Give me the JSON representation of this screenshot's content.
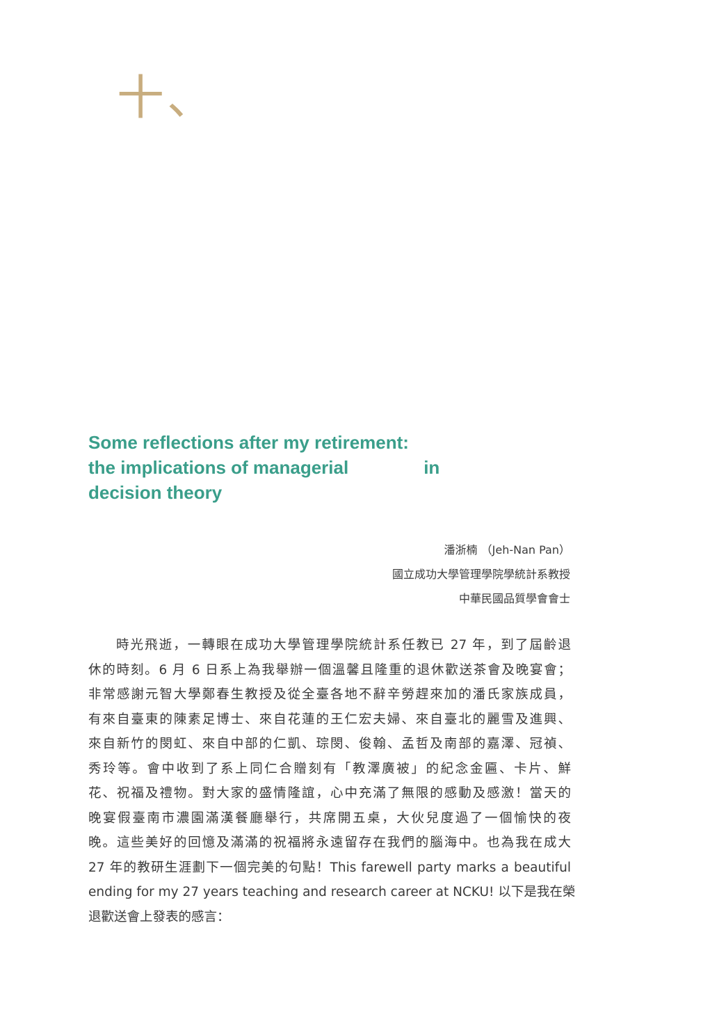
{
  "chapter": {
    "number": "十、"
  },
  "title": {
    "line1": "Some reflections after my retirement:",
    "line2a": "the implications of managerial",
    "line2b": "in",
    "line3": "decision theory"
  },
  "byline": {
    "author": "潘浙楠 （Jeh-Nan Pan）",
    "affiliation": "國立成功大學管理學院學統計系教授",
    "honor": "中華民國品質學會會士"
  },
  "body": {
    "lines": [
      "時光飛逝，一轉眼在成功大學管理學院統計系任教已 27 年，到了屆齡退",
      "休的時刻。6 月 6 日系上為我舉辦一個溫馨且隆重的退休歡送茶會及晚宴會；",
      "非常感謝元智大學鄭春生教授及從全臺各地不辭辛勞趕來加的潘氏家族成員，",
      "有來自臺東的陳素足博士、來自花蓮的王仁宏夫婦、來自臺北的麗雪及進興、",
      "來自新竹的閔虹、來自中部的仁凱、琮閔、俊翰、孟哲及南部的嘉澤、冠禎、",
      "秀玲等。會中收到了系上同仁合贈刻有「教澤廣被」的紀念金匾、卡片、鮮",
      "花、祝福及禮物。對大家的盛情隆誼，心中充滿了無限的感動及感激！當天的",
      "晚宴假臺南市濃園滿漢餐廳舉行，共席開五桌，大伙兒度過了一個愉快的夜",
      "晚。這些美好的回憶及滿滿的祝福將永遠留存在我們的腦海中。也為我在成大",
      "27 年的教研生涯劃下一個完美的句點！This farewell party marks a beautiful",
      "ending for my 27 years teaching and research career at NCKU! 以下是我在榮",
      "退歡送會上發表的感言："
    ]
  }
}
